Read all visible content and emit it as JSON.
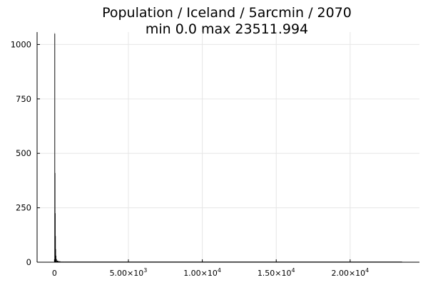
{
  "chart_data": {
    "type": "bar",
    "title": "Population / Iceland / 5arcmin / 2070",
    "subtitle": "min 0.0  max 23511.994",
    "xlabel": "",
    "ylabel": "",
    "xlim": [
      -1175,
      24687
    ],
    "ylim": [
      0,
      1057
    ],
    "grid": true,
    "legend": "none",
    "x_ticks": [
      {
        "value": 0,
        "label": "0"
      },
      {
        "value": 5000,
        "label": "5.00×10",
        "exp": "3"
      },
      {
        "value": 10000,
        "label": "1.00×10",
        "exp": "4"
      },
      {
        "value": 15000,
        "label": "1.50×10",
        "exp": "4"
      },
      {
        "value": 20000,
        "label": "2.00×10",
        "exp": "4"
      }
    ],
    "y_ticks": [
      {
        "value": 0,
        "label": "0"
      },
      {
        "value": 250,
        "label": "250"
      },
      {
        "value": 500,
        "label": "500"
      },
      {
        "value": 750,
        "label": "750"
      },
      {
        "value": 1000,
        "label": "1000"
      }
    ],
    "bins": [
      {
        "x0": 0,
        "x1": 15,
        "count": 1050
      },
      {
        "x0": 15,
        "x1": 30,
        "count": 410
      },
      {
        "x0": 30,
        "x1": 45,
        "count": 225
      },
      {
        "x0": 45,
        "x1": 60,
        "count": 120
      },
      {
        "x0": 60,
        "x1": 80,
        "count": 60
      },
      {
        "x0": 80,
        "x1": 110,
        "count": 30
      },
      {
        "x0": 110,
        "x1": 160,
        "count": 14
      },
      {
        "x0": 160,
        "x1": 250,
        "count": 7
      },
      {
        "x0": 250,
        "x1": 400,
        "count": 4
      },
      {
        "x0": 400,
        "x1": 700,
        "count": 2
      },
      {
        "x0": 700,
        "x1": 1200,
        "count": 1
      },
      {
        "x0": 1200,
        "x1": 2500,
        "count": 1
      },
      {
        "x0": 2500,
        "x1": 6000,
        "count": 1
      },
      {
        "x0": 6000,
        "x1": 12000,
        "count": 1
      },
      {
        "x0": 12000,
        "x1": 23512,
        "count": 1
      }
    ],
    "colors": {
      "bar": "#000000",
      "grid": "#e6e6e6"
    }
  }
}
